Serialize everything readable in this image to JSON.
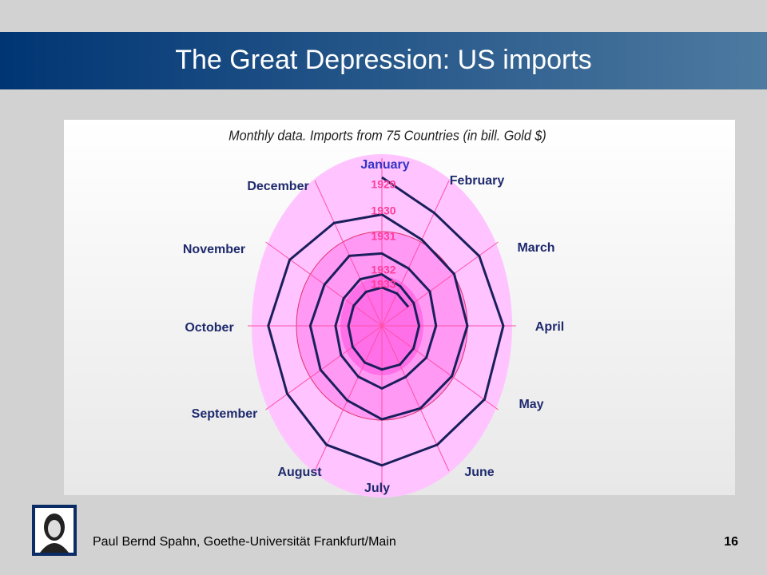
{
  "header": {
    "title": "The Great Depression: US imports"
  },
  "chart_data": {
    "type": "spiral",
    "subtitle": "Monthly data. Imports from 75 Countries (in bill. Gold $)",
    "categories": [
      "January",
      "February",
      "March",
      "April",
      "May",
      "June",
      "July",
      "August",
      "September",
      "October",
      "November",
      "December"
    ],
    "series": [
      {
        "name": "1929",
        "color": "#1a1f5c",
        "values": [
          2.998,
          2.63,
          2.815,
          3.039,
          2.968,
          2.773,
          2.819,
          2.774,
          2.739,
          2.844,
          2.666,
          2.398
        ]
      },
      {
        "name": "1930",
        "color": "#1a1f5c",
        "values": [
          2.248,
          2.006,
          2.09,
          2.14,
          2.026,
          1.925,
          1.889,
          1.738,
          1.775,
          1.793,
          1.662,
          1.632
        ]
      },
      {
        "name": "1931",
        "color": "#1a1f5c",
        "values": [
          1.461,
          1.337,
          1.386,
          1.355,
          1.284,
          1.19,
          1.265,
          1.185,
          1.181,
          1.162,
          1.106,
          1.087
        ]
      },
      {
        "name": "1932",
        "color": "#1a1f5c",
        "values": [
          1.039,
          0.922,
          0.919,
          0.931,
          0.914,
          0.904,
          0.882,
          0.857,
          0.847,
          0.839,
          0.815,
          0.793
        ]
      },
      {
        "name": "1933",
        "color": "#1a1f5c",
        "values": [
          0.774,
          0.755,
          0.763,
          null,
          null,
          null,
          null,
          null,
          null,
          null,
          null,
          null
        ]
      }
    ]
  },
  "footer": {
    "author": "Paul Bernd Spahn, Goethe-Universität Frankfurt/Main",
    "page": "16"
  }
}
